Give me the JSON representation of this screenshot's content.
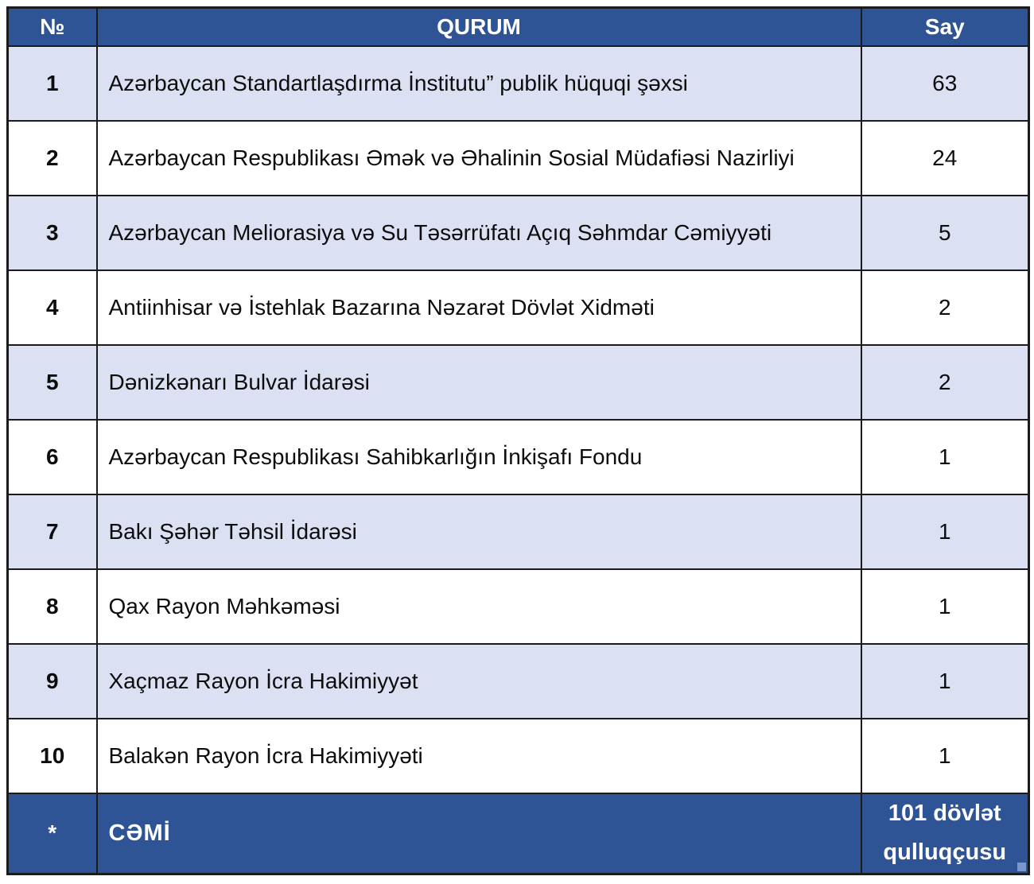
{
  "table": {
    "headers": {
      "num": "№",
      "qurum": "QURUM",
      "say": "Say"
    },
    "rows": [
      {
        "num": "1",
        "qurum": "Azərbaycan Standartlaşdırma İnstitutu” publik hüquqi şəxsi",
        "say": "63"
      },
      {
        "num": "2",
        "qurum": "Azərbaycan Respublikası Əmək və Əhalinin Sosial Müdafiəsi Nazirliyi",
        "say": "24"
      },
      {
        "num": "3",
        "qurum": "Azərbaycan Meliorasiya və Su Təsərrüfatı Açıq Səhmdar Cəmiyyəti",
        "say": "5"
      },
      {
        "num": "4",
        "qurum": "Antiinhisar və İstehlak Bazarına Nəzarət Dövlət Xidməti",
        "say": "2"
      },
      {
        "num": "5",
        "qurum": "Dənizkənarı Bulvar İdarəsi",
        "say": "2"
      },
      {
        "num": "6",
        "qurum": "Azərbaycan Respublikası Sahibkarlığın İnkişafı Fondu",
        "say": "1"
      },
      {
        "num": "7",
        "qurum": "Bakı Şəhər Təhsil İdarəsi",
        "say": "1"
      },
      {
        "num": "8",
        "qurum": "Qax Rayon Məhkəməsi",
        "say": "1"
      },
      {
        "num": "9",
        "qurum": "Xaçmaz Rayon İcra Hakimiyyət",
        "say": "1"
      },
      {
        "num": "10",
        "qurum": "Balakən Rayon İcra Hakimiyyəti",
        "say": "1"
      }
    ],
    "footer": {
      "num": "*",
      "qurum": "CƏMİ",
      "say": "101 dövlət qulluqçusu"
    }
  },
  "colors": {
    "header_bg": "#2F5496",
    "footer_bg": "#2F5496",
    "row_alt_bg": "#DBE1F2",
    "row_bg": "#FFFFFF",
    "border": "#1B1B1B",
    "header_text": "#FFFFFF",
    "body_text": "#0D0D0D"
  }
}
